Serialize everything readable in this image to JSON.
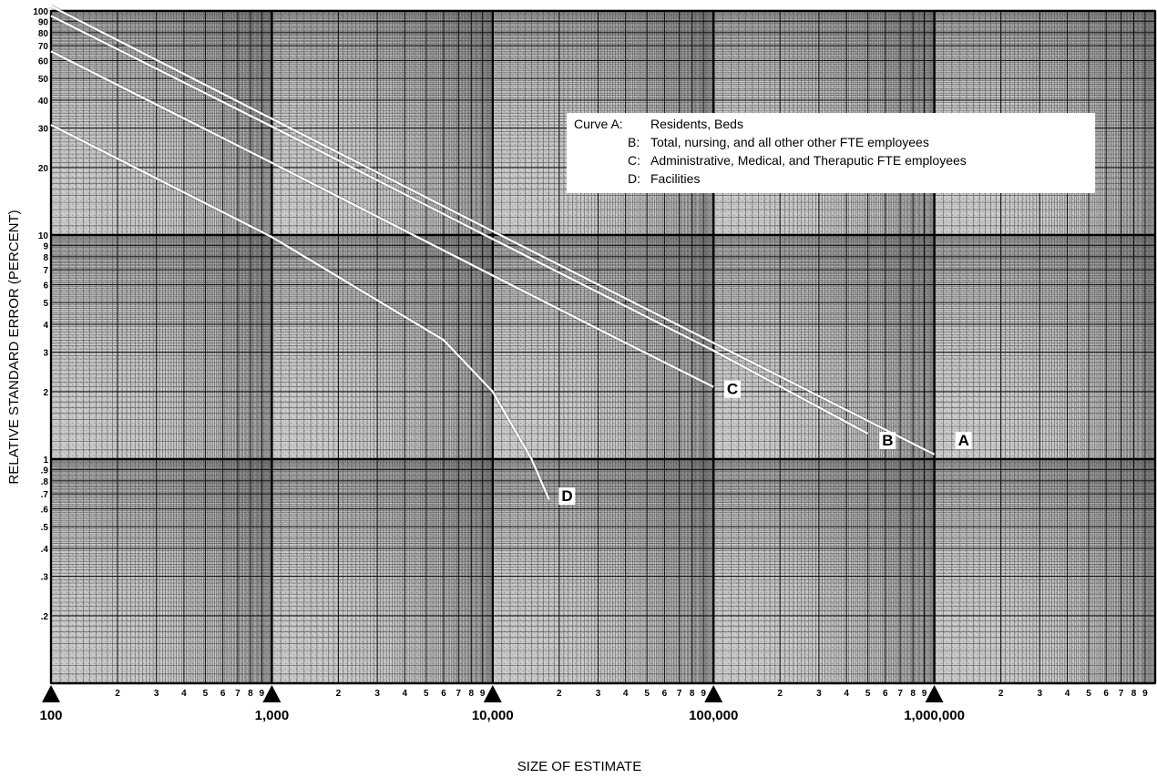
{
  "chart_data": {
    "type": "line",
    "title": "",
    "xlabel": "SIZE OF ESTIMATE",
    "ylabel": "RELATIVE STANDARD ERROR (PERCENT)",
    "x_scale": "log",
    "y_scale": "log",
    "xlim": [
      100,
      10000000
    ],
    "ylim": [
      0.1,
      100
    ],
    "grid": true,
    "legend_position": "top-right",
    "x_major_ticks": [
      {
        "value": 100,
        "label": "100"
      },
      {
        "value": 1000,
        "label": "1,000"
      },
      {
        "value": 10000,
        "label": "10,000"
      },
      {
        "value": 100000,
        "label": "100,000"
      },
      {
        "value": 1000000,
        "label": "1,000,000"
      }
    ],
    "x_minor_labels": [
      "2",
      "3",
      "4",
      "5",
      "6",
      "7",
      "8",
      "9"
    ],
    "y_ticks": [
      {
        "value": 100,
        "label": "100"
      },
      {
        "value": 90,
        "label": "90"
      },
      {
        "value": 80,
        "label": "80"
      },
      {
        "value": 70,
        "label": "70"
      },
      {
        "value": 60,
        "label": "60"
      },
      {
        "value": 50,
        "label": "50"
      },
      {
        "value": 40,
        "label": "40"
      },
      {
        "value": 30,
        "label": "30"
      },
      {
        "value": 20,
        "label": "20"
      },
      {
        "value": 10,
        "label": "10"
      },
      {
        "value": 9,
        "label": "9"
      },
      {
        "value": 8,
        "label": "8"
      },
      {
        "value": 7,
        "label": "7"
      },
      {
        "value": 6,
        "label": "6"
      },
      {
        "value": 5,
        "label": "5"
      },
      {
        "value": 4,
        "label": "4"
      },
      {
        "value": 3,
        "label": "3"
      },
      {
        "value": 2,
        "label": "2"
      },
      {
        "value": 1,
        "label": "1"
      },
      {
        "value": 0.9,
        "label": ".9"
      },
      {
        "value": 0.8,
        "label": ".8"
      },
      {
        "value": 0.7,
        "label": ".7"
      },
      {
        "value": 0.6,
        "label": ".6"
      },
      {
        "value": 0.5,
        "label": ".5"
      },
      {
        "value": 0.4,
        "label": ".4"
      },
      {
        "value": 0.3,
        "label": ".3"
      },
      {
        "value": 0.2,
        "label": ".2"
      }
    ],
    "series": [
      {
        "name": "A",
        "color": "#ffffff",
        "label_at": [
          1280000,
          1.15
        ],
        "points": [
          [
            100,
            105
          ],
          [
            1000,
            33
          ],
          [
            10000,
            10.4
          ],
          [
            100000,
            3.3
          ],
          [
            1000000,
            1.05
          ]
        ]
      },
      {
        "name": "B",
        "color": "#ffffff",
        "label_at": [
          580000,
          1.15
        ],
        "points": [
          [
            100,
            95
          ],
          [
            1000,
            30.5
          ],
          [
            10000,
            9.6
          ],
          [
            100000,
            3.05
          ],
          [
            500000,
            1.3
          ]
        ]
      },
      {
        "name": "C",
        "color": "#ffffff",
        "label_at": [
          115000,
          1.95
        ],
        "points": [
          [
            100,
            66
          ],
          [
            1000,
            21
          ],
          [
            10000,
            6.6
          ],
          [
            40000,
            3.3
          ],
          [
            100000,
            2.1
          ]
        ]
      },
      {
        "name": "D",
        "color": "#ffffff",
        "label_at": [
          20500,
          0.65
        ],
        "points": [
          [
            100,
            31
          ],
          [
            1000,
            9.8
          ],
          [
            6000,
            3.4
          ],
          [
            10000,
            2.0
          ],
          [
            15000,
            1.0
          ],
          [
            18000,
            0.66
          ]
        ]
      }
    ],
    "legend": [
      {
        "key": "Curve A:",
        "text": "Residents, Beds"
      },
      {
        "key": "B:",
        "text": "Total, nursing, and all other other FTE employees"
      },
      {
        "key": "C:",
        "text": "Administrative, Medical, and Theraputic FTE employees"
      },
      {
        "key": "D:",
        "text": "Facilities"
      }
    ],
    "colors": {
      "background": "#ffffff",
      "paper": "#c2c2c2",
      "grid": "#1a1a1a",
      "curve": "#ffffff"
    }
  }
}
